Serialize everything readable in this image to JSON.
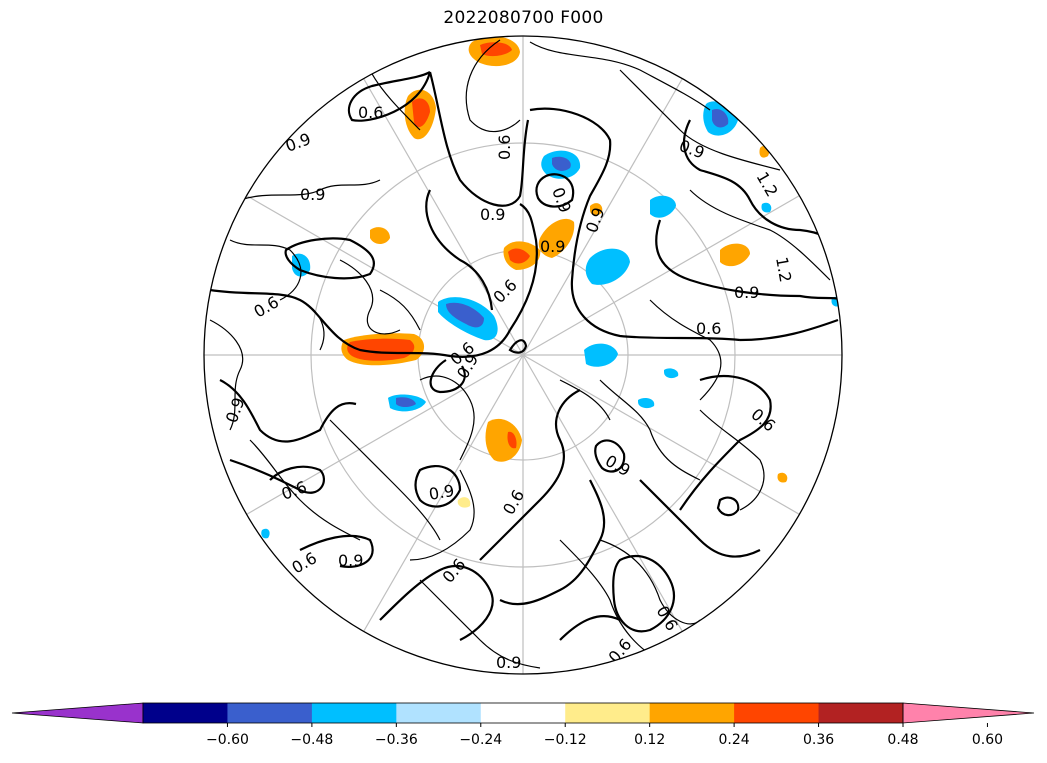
{
  "title": "2022080700 F000",
  "map": {
    "projection": "north-polar-stereographic",
    "contour_labels": [
      "0.6",
      "0.9",
      "0.9",
      "0.9",
      "0.9",
      "0.6",
      "0.9",
      "0.9",
      "0.6",
      "0.9",
      "1.2",
      "1.2",
      "0.9",
      "0.6",
      "0.6",
      "0.9",
      "0.9",
      "0.6",
      "0.6",
      "0.9",
      "0.9",
      "0.6",
      "0.6",
      "0.6",
      "0.9",
      "0.6",
      "0.9",
      "0.6",
      "0.6"
    ]
  },
  "colorbar": {
    "colors": [
      "#9932cc",
      "#00008b",
      "#3a5fcd",
      "#00bfff",
      "#b0e2ff",
      "#ffffff",
      "#ffec8b",
      "#ffa500",
      "#ff4500",
      "#b22222",
      "#ff82ab"
    ],
    "ticks": [
      "−0.60",
      "−0.48",
      "−0.36",
      "−0.24",
      "−0.12",
      "0.12",
      "0.24",
      "0.36",
      "0.48",
      "0.60"
    ],
    "extend": "both"
  },
  "colors": {
    "land_outline": "#000000",
    "contour": "#000000",
    "graticule": "#bfbfbf"
  }
}
